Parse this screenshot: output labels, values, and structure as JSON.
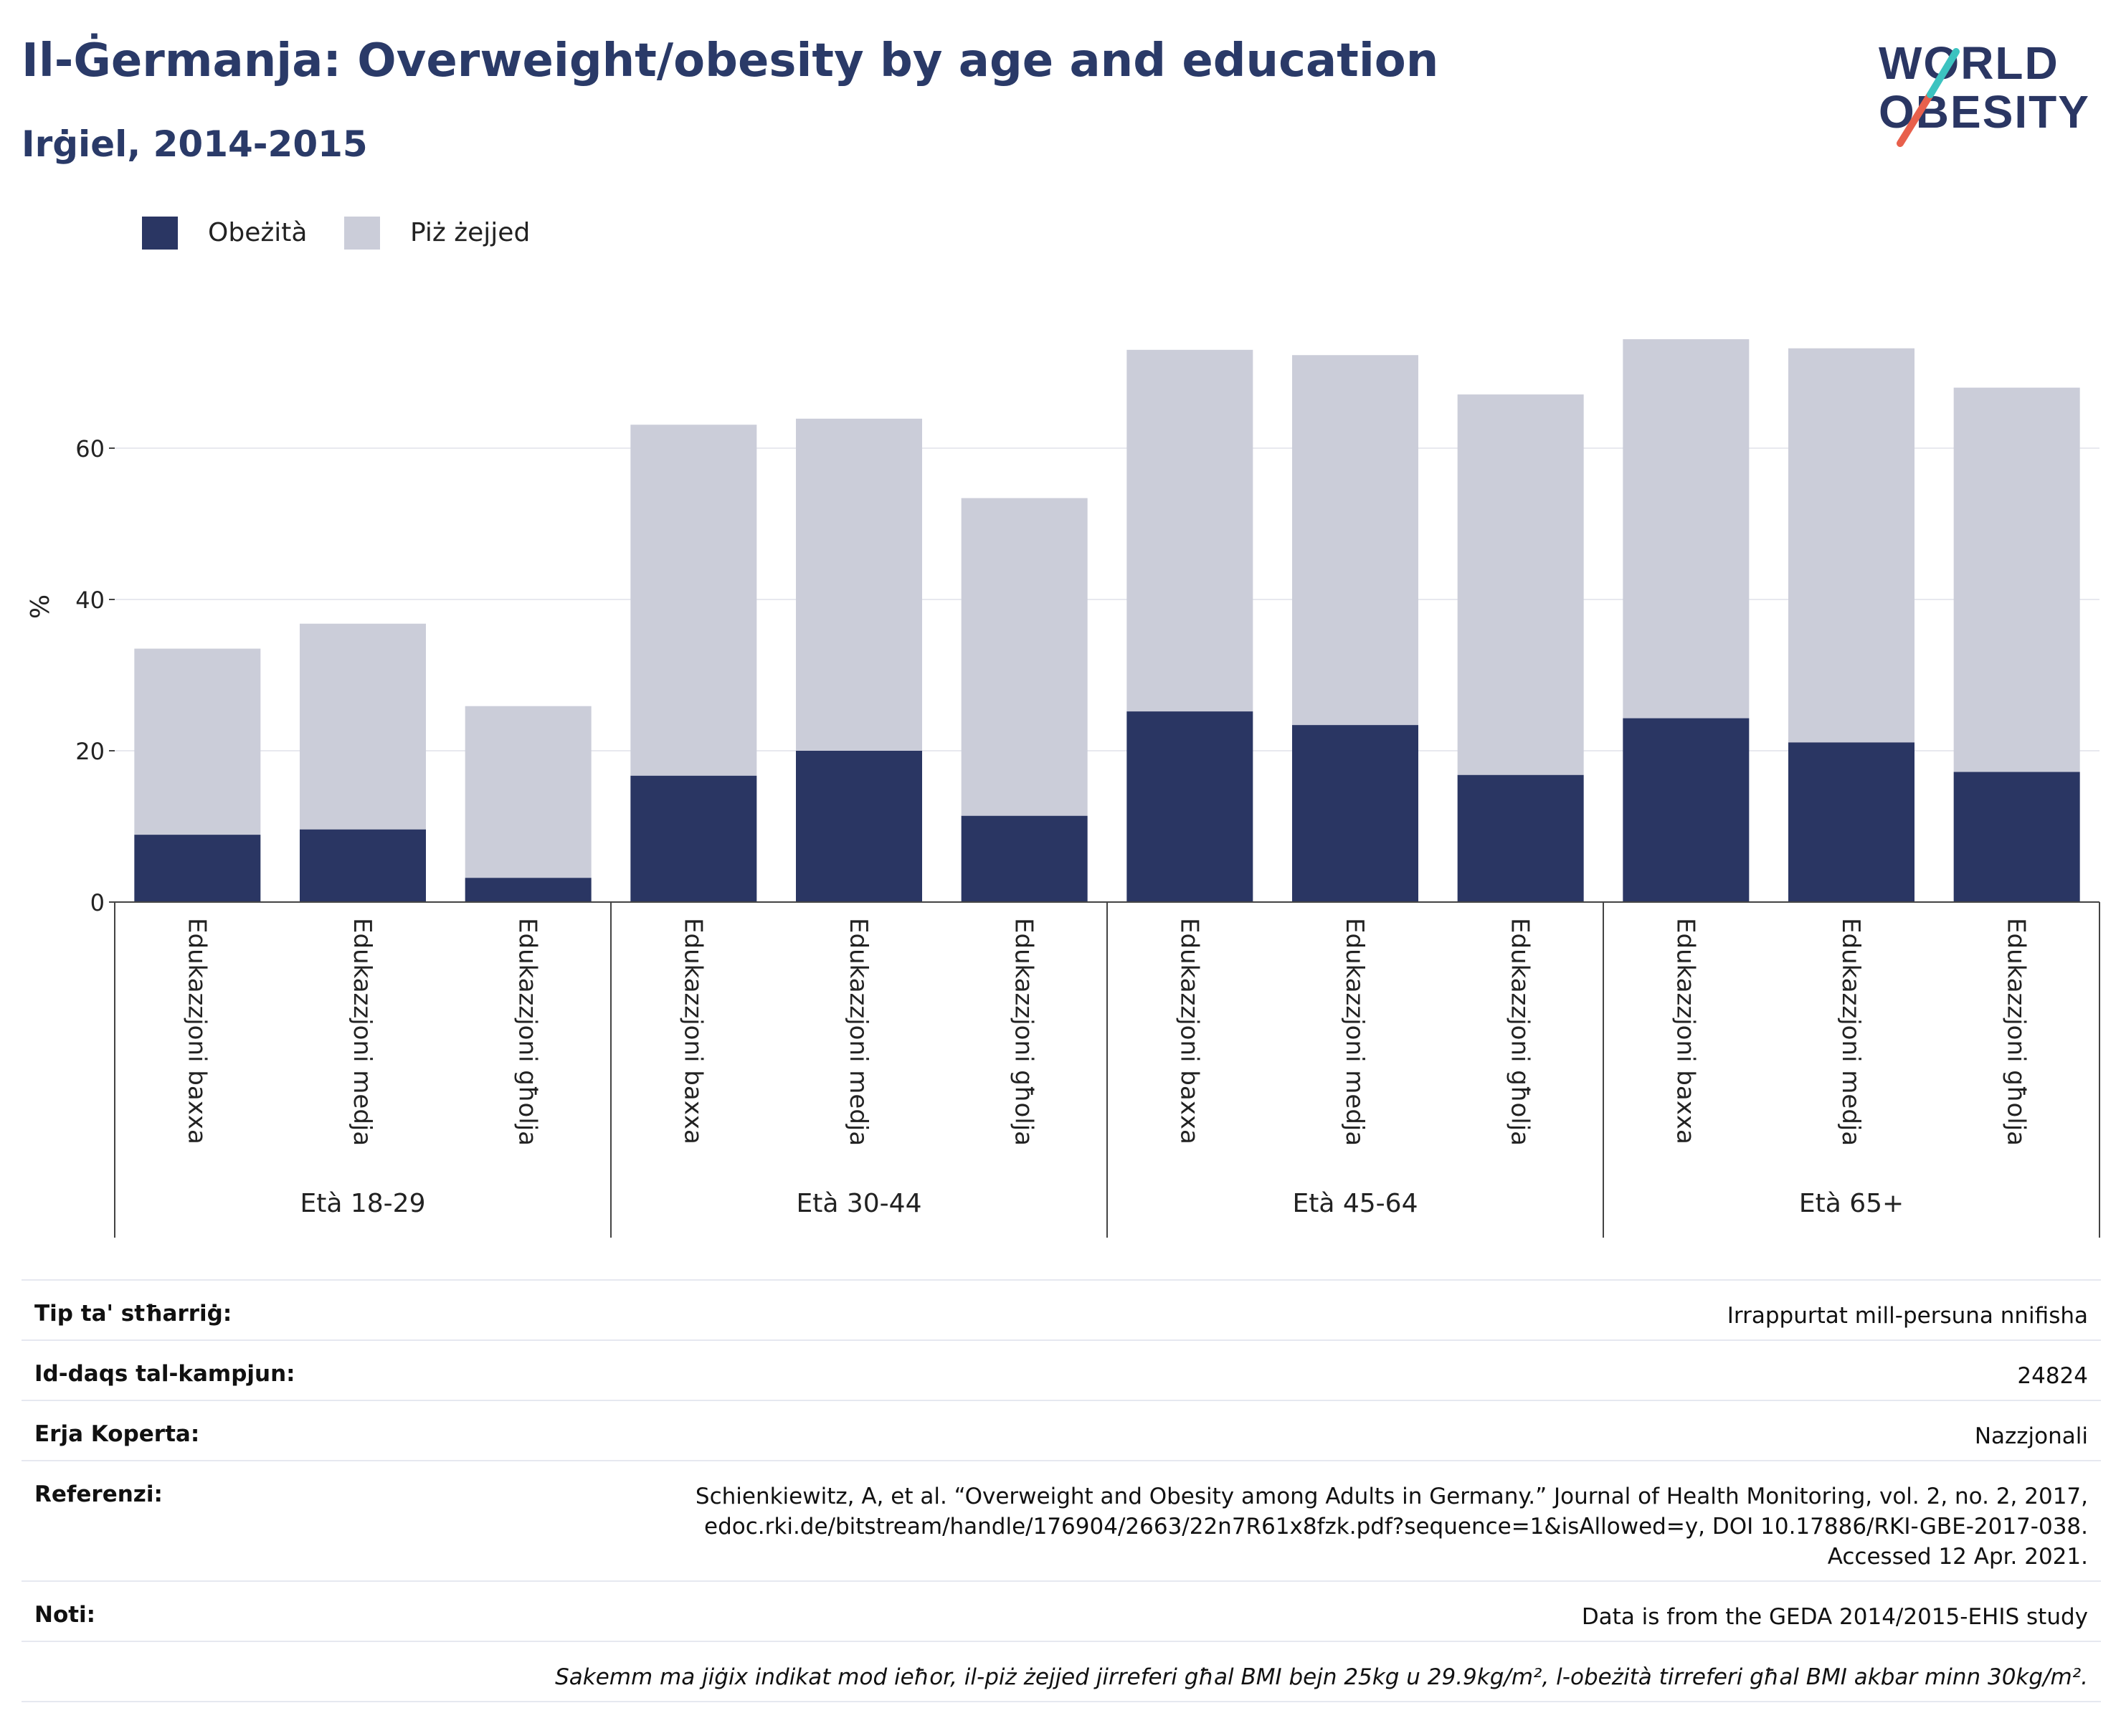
{
  "title": "Il-Ġermanja: Overweight/obesity by age and education",
  "subtitle": "Irġiel, 2014-2015",
  "logo": {
    "line1": "WORLD",
    "line2": "OBESITY",
    "accent_colors": [
      "#e8604c",
      "#3cc3c0"
    ]
  },
  "legend": [
    {
      "label": "Obeżità",
      "color": "#2a3663"
    },
    {
      "label": "Piż żejjed",
      "color": "#cbcdd9"
    }
  ],
  "chart_data": {
    "type": "bar",
    "stacked": true,
    "ylabel": "%",
    "ylim": [
      0,
      80
    ],
    "yticks": [
      0,
      20,
      40,
      60
    ],
    "grid": true,
    "legend_position": "top-left",
    "groups": [
      "Età 18-29",
      "Età 30-44",
      "Età 45-64",
      "Età 65+"
    ],
    "categories": [
      "Edukazzjoni baxxa",
      "Edukazzjoni medja",
      "Edukazzjoni għolja",
      "Edukazzjoni baxxa",
      "Edukazzjoni medja",
      "Edukazzjoni għolja",
      "Edukazzjoni baxxa",
      "Edukazzjoni medja",
      "Edukazzjoni għolja",
      "Edukazzjoni baxxa",
      "Edukazzjoni medja",
      "Edukazzjoni għolja"
    ],
    "series": [
      {
        "name": "Obeżità",
        "color": "#2a3663",
        "values": [
          8.9,
          9.6,
          3.2,
          16.7,
          20.0,
          11.4,
          25.2,
          23.4,
          16.8,
          24.3,
          21.1,
          17.2
        ]
      },
      {
        "name": "Piż żejjed",
        "color": "#cbcdd9",
        "values": [
          24.6,
          27.2,
          22.7,
          46.4,
          43.9,
          42.0,
          47.8,
          48.9,
          50.3,
          50.1,
          52.1,
          50.8
        ]
      }
    ]
  },
  "meta": [
    {
      "label": "Tip ta' stħarriġ:",
      "value": [
        "Irrappurtat mill-persuna nnifisha"
      ]
    },
    {
      "label": "Id-daqs tal-kampjun:",
      "value": [
        "24824"
      ]
    },
    {
      "label": "Erja Koperta:",
      "value": [
        "Nazzjonali"
      ]
    },
    {
      "label": "Referenzi:",
      "value": [
        "Schienkiewitz, A, et al. “Overweight and Obesity among Adults in Germany.” Journal of Health Monitoring, vol. 2, no. 2, 2017,",
        "edoc.rki.de/bitstream/handle/176904/2663/22n7R61x8fzk.pdf?sequence=1&isAllowed=y, DOI 10.17886/RKI-GBE-2017-038.",
        "Accessed 12 Apr. 2021."
      ]
    },
    {
      "label": "Noti:",
      "value": [
        "Data is from the GEDA 2014/2015-EHIS study"
      ]
    },
    {
      "label": "",
      "italic": true,
      "value": [
        "Sakemm ma jiġix indikat mod ieħor, il-piż żejjed jirreferi għal BMI bejn 25kg u 29.9kg/m², l-obeżità tirreferi għal BMI akbar minn 30kg/m²."
      ]
    }
  ]
}
